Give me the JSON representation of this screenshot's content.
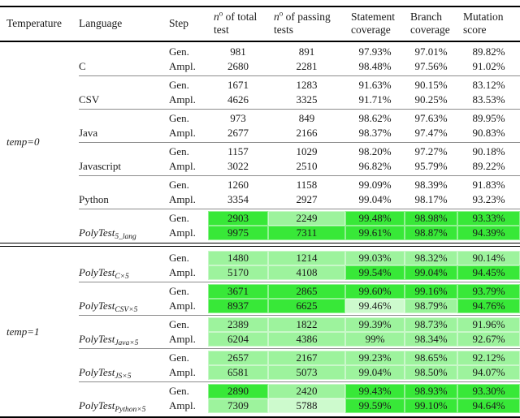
{
  "header": {
    "columns": [
      {
        "label": "Temperature"
      },
      {
        "label": "Language"
      },
      {
        "label": "Step"
      },
      {
        "italic_n": "n",
        "sup": "o",
        "rest": " of total test"
      },
      {
        "italic_n": "n",
        "sup": "o",
        "rest": " of passing tests"
      },
      {
        "label": "Statement coverage"
      },
      {
        "label": "Branch coverage"
      },
      {
        "label": "Mutation score"
      }
    ]
  },
  "colors": {
    "bright": "#38e838",
    "medium": "#9df39d",
    "pale": "#cdfacd"
  },
  "sections": [
    {
      "temp": "temp=0",
      "groups": [
        {
          "lang": "C",
          "rows": [
            {
              "step": "Gen.",
              "values": [
                "981",
                "891",
                "97.93%",
                "97.01%",
                "89.82%"
              ],
              "shades": [
                null,
                null,
                null,
                null,
                null
              ]
            },
            {
              "step": "Ampl.",
              "values": [
                "2680",
                "2281",
                "98.48%",
                "97.56%",
                "91.02%"
              ],
              "shades": [
                null,
                null,
                null,
                null,
                null
              ]
            }
          ]
        },
        {
          "lang": "CSV",
          "rows": [
            {
              "step": "Gen.",
              "values": [
                "1671",
                "1283",
                "91.63%",
                "90.15%",
                "83.12%"
              ],
              "shades": [
                null,
                null,
                null,
                null,
                null
              ]
            },
            {
              "step": "Ampl.",
              "values": [
                "4626",
                "3325",
                "91.71%",
                "90.25%",
                "83.53%"
              ],
              "shades": [
                null,
                null,
                null,
                null,
                null
              ]
            }
          ]
        },
        {
          "lang": "Java",
          "rows": [
            {
              "step": "Gen.",
              "values": [
                "973",
                "849",
                "98.62%",
                "97.63%",
                "89.95%"
              ],
              "shades": [
                null,
                null,
                null,
                null,
                null
              ]
            },
            {
              "step": "Ampl.",
              "values": [
                "2677",
                "2166",
                "98.37%",
                "97.47%",
                "90.83%"
              ],
              "shades": [
                null,
                null,
                null,
                null,
                null
              ]
            }
          ]
        },
        {
          "lang": "Javascript",
          "rows": [
            {
              "step": "Gen.",
              "values": [
                "1157",
                "1029",
                "98.20%",
                "97.27%",
                "90.18%"
              ],
              "shades": [
                null,
                null,
                null,
                null,
                null
              ]
            },
            {
              "step": "Ampl.",
              "values": [
                "3022",
                "2510",
                "96.82%",
                "95.79%",
                "89.22%"
              ],
              "shades": [
                null,
                null,
                null,
                null,
                null
              ]
            }
          ]
        },
        {
          "lang": "Python",
          "rows": [
            {
              "step": "Gen.",
              "values": [
                "1260",
                "1158",
                "99.09%",
                "98.39%",
                "91.83%"
              ],
              "shades": [
                null,
                null,
                null,
                null,
                null
              ]
            },
            {
              "step": "Ampl.",
              "values": [
                "3354",
                "2927",
                "99.04%",
                "98.17%",
                "93.23%"
              ],
              "shades": [
                null,
                null,
                null,
                null,
                null
              ]
            }
          ]
        },
        {
          "lang_base": "PolyTest",
          "lang_sub": "5_lang",
          "rows": [
            {
              "step": "Gen.",
              "values": [
                "2903",
                "2249",
                "99.48%",
                "98.98%",
                "93.33%"
              ],
              "shades": [
                "b",
                "m",
                "b",
                "b",
                "b"
              ]
            },
            {
              "step": "Ampl.",
              "values": [
                "9975",
                "7311",
                "99.61%",
                "98.87%",
                "94.39%"
              ],
              "shades": [
                "b",
                "b",
                "b",
                "b",
                "b"
              ]
            }
          ]
        }
      ]
    },
    {
      "temp": "temp=1",
      "groups": [
        {
          "lang_base": "PolyTest",
          "lang_sub": "C×5",
          "rows": [
            {
              "step": "Gen.",
              "values": [
                "1480",
                "1214",
                "99.03%",
                "98.32%",
                "90.14%"
              ],
              "shades": [
                "m",
                "m",
                "m",
                "m",
                "m"
              ]
            },
            {
              "step": "Ampl.",
              "values": [
                "5170",
                "4108",
                "99.54%",
                "99.04%",
                "94.45%"
              ],
              "shades": [
                "m",
                "m",
                "b",
                "b",
                "b"
              ]
            }
          ]
        },
        {
          "lang_base": "PolyTest",
          "lang_sub": "CSV×5",
          "rows": [
            {
              "step": "Gen.",
              "values": [
                "3671",
                "2865",
                "99.60%",
                "99.16%",
                "93.79%"
              ],
              "shades": [
                "b",
                "b",
                "b",
                "b",
                "b"
              ]
            },
            {
              "step": "Ampl.",
              "values": [
                "8937",
                "6625",
                "99.46%",
                "98.79%",
                "94.76%"
              ],
              "shades": [
                "b",
                "b",
                "p",
                "m",
                "b"
              ]
            }
          ]
        },
        {
          "lang_base": "PolyTest",
          "lang_sub": "Java×5",
          "rows": [
            {
              "step": "Gen.",
              "values": [
                "2389",
                "1822",
                "99.39%",
                "98.73%",
                "91.96%"
              ],
              "shades": [
                "m",
                "m",
                "m",
                "m",
                "m"
              ]
            },
            {
              "step": "Ampl.",
              "values": [
                "6204",
                "4386",
                "99%",
                "98.34%",
                "92.67%"
              ],
              "shades": [
                "m",
                "m",
                "m",
                "m",
                "m"
              ]
            }
          ]
        },
        {
          "lang_base": "PolyTest",
          "lang_sub": "JS×5",
          "rows": [
            {
              "step": "Gen.",
              "values": [
                "2657",
                "2167",
                "99.23%",
                "98.65%",
                "92.12%"
              ],
              "shades": [
                "m",
                "m",
                "m",
                "m",
                "m"
              ]
            },
            {
              "step": "Ampl.",
              "values": [
                "6581",
                "5073",
                "99.04%",
                "98.50%",
                "94.07%"
              ],
              "shades": [
                "m",
                "m",
                "m",
                "m",
                "m"
              ]
            }
          ]
        },
        {
          "lang_base": "PolyTest",
          "lang_sub": "Python×5",
          "rows": [
            {
              "step": "Gen.",
              "values": [
                "2890",
                "2420",
                "99.43%",
                "98.93%",
                "93.30%"
              ],
              "shades": [
                "b",
                "m",
                "b",
                "b",
                "b"
              ]
            },
            {
              "step": "Ampl.",
              "values": [
                "7309",
                "5788",
                "99.59%",
                "99.10%",
                "94.64%"
              ],
              "shades": [
                "m",
                "p",
                "b",
                "b",
                "b"
              ]
            }
          ]
        }
      ]
    }
  ]
}
